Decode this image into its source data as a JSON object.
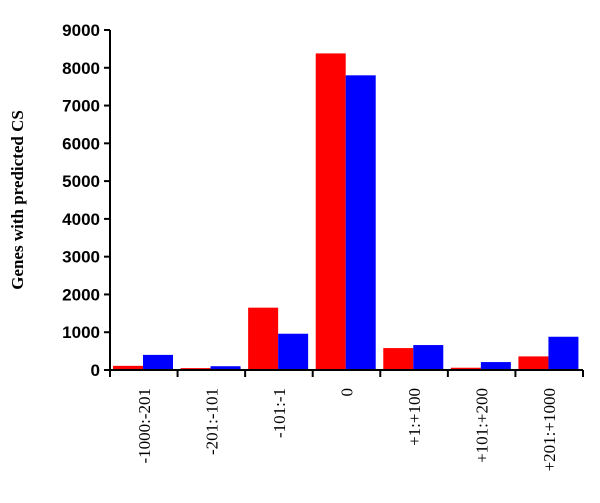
{
  "chart_data": {
    "type": "bar",
    "title": "",
    "xlabel": "",
    "ylabel": "Genes with predicted CS",
    "categories": [
      "-1000:-201",
      "-201:-101",
      "-101:-1",
      "0",
      "+1:+100",
      "+101:+200",
      "+201:+1000"
    ],
    "series": [
      {
        "values": [
          110,
          50,
          1650,
          8380,
          580,
          60,
          360
        ],
        "color": "#ff0000"
      },
      {
        "values": [
          400,
          100,
          960,
          7800,
          660,
          210,
          880
        ],
        "color": "#0000ff"
      }
    ],
    "ylim": [
      0,
      9000
    ],
    "yticks": [
      "0",
      "1000",
      "2000",
      "3000",
      "4000",
      "5000",
      "6000",
      "7000",
      "8000",
      "9000"
    ],
    "grid": false,
    "legend": "none"
  }
}
